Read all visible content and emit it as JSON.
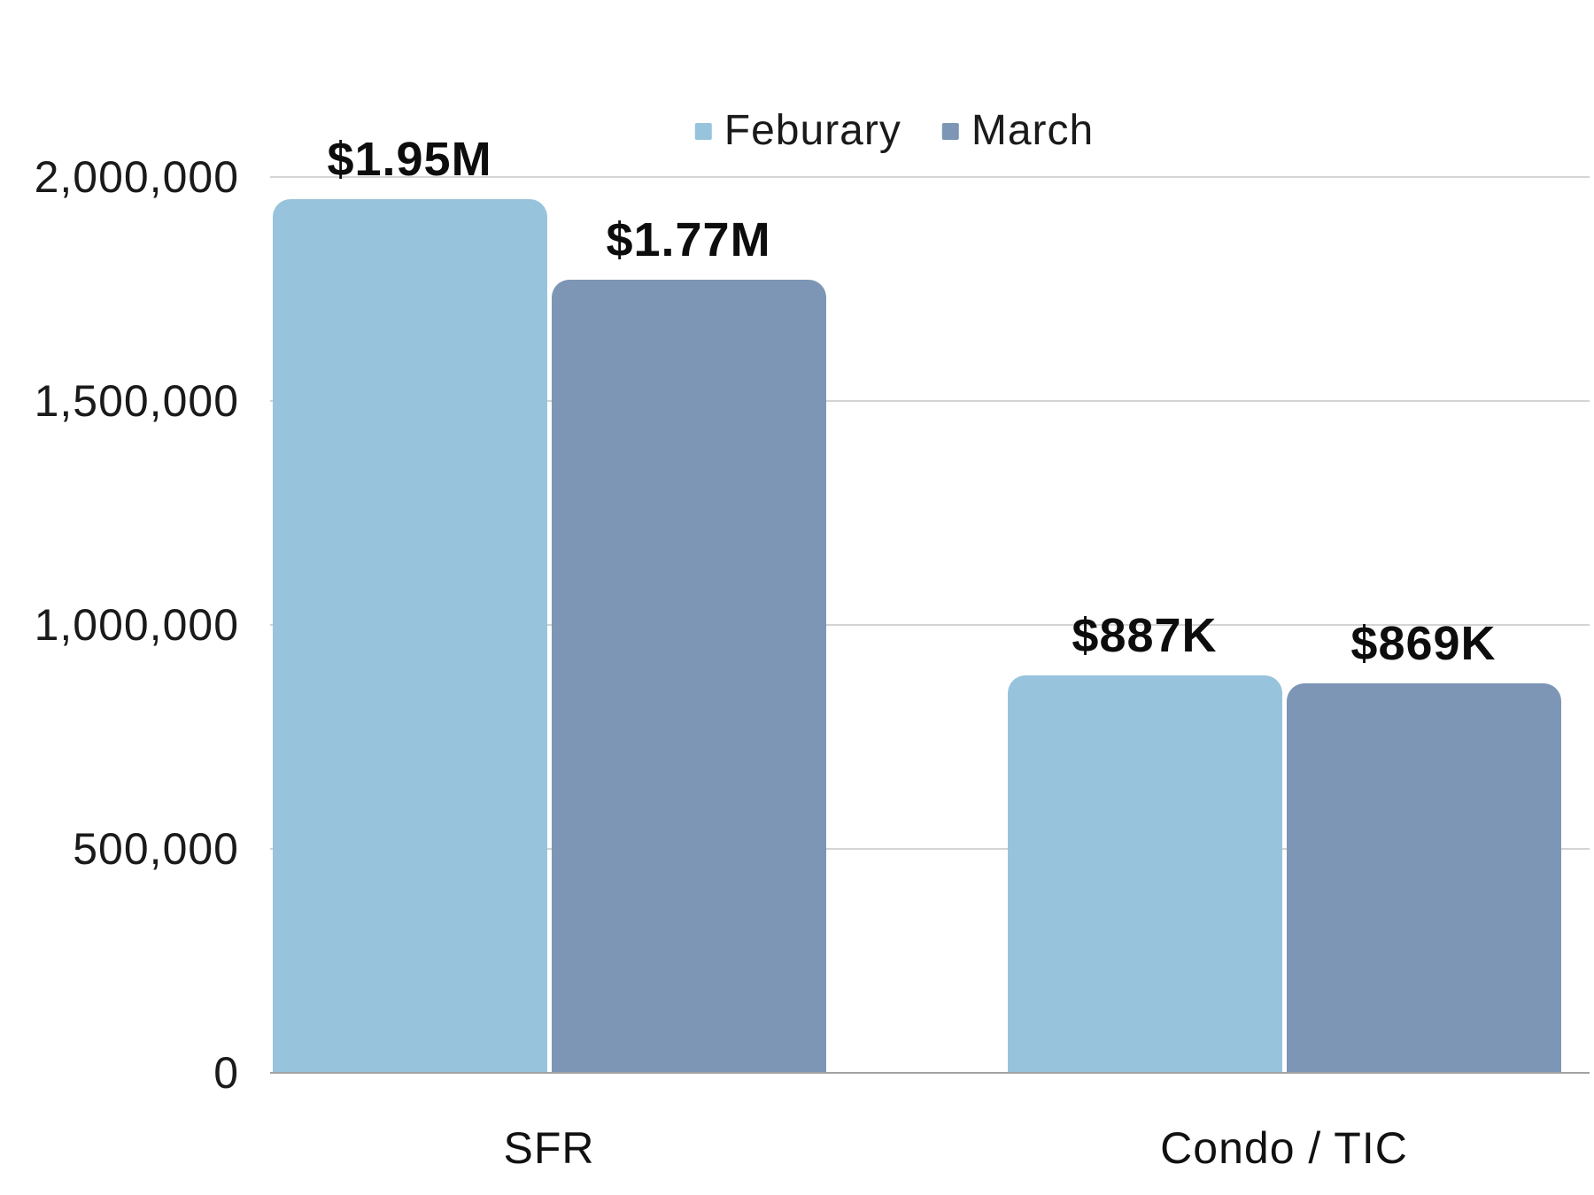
{
  "chart_data": {
    "type": "bar",
    "title": "",
    "categories": [
      "SFR",
      "Condo / TIC"
    ],
    "series": [
      {
        "name": "Feburary",
        "color": "#98C3DC",
        "values": [
          1950000,
          887000
        ],
        "labels": [
          "$1.95M",
          "$887K"
        ]
      },
      {
        "name": "March",
        "color": "#7D96B5",
        "values": [
          1770000,
          869000
        ],
        "labels": [
          "$1.77M",
          "$869K"
        ]
      }
    ],
    "ylim": [
      0,
      2000000
    ],
    "yticks": [
      {
        "value": 2000000,
        "label": "2,000,000"
      },
      {
        "value": 1500000,
        "label": "1,500,000"
      },
      {
        "value": 1000000,
        "label": "1,000,000"
      },
      {
        "value": 500000,
        "label": "500,000"
      },
      {
        "value": 0,
        "label": "0"
      }
    ],
    "grid": "horizontal",
    "legend_position": "top"
  },
  "colors": {
    "background": "#FFFFFF",
    "gridline": "#D4D4D4",
    "axis_line": "#A3A3A3",
    "tick_text": "#1A1A1A",
    "bar_label_text": "#0D0D0D",
    "february_bar": "#98C3DC",
    "march_bar": "#7D96B5"
  }
}
